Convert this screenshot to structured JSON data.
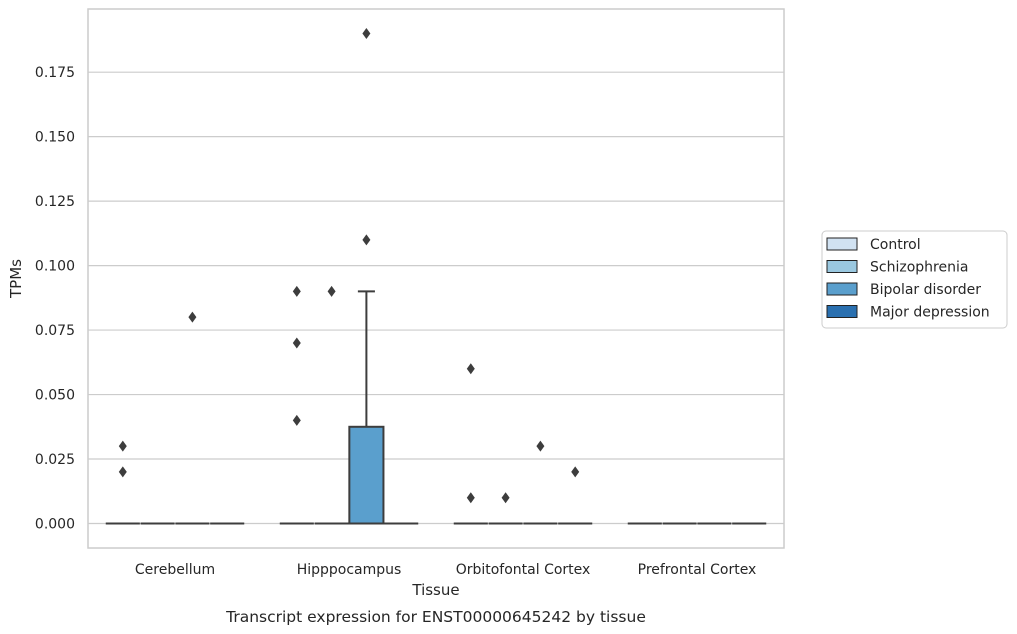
{
  "chart_data": {
    "type": "box",
    "title": "",
    "caption": "Transcript expression for ENST00000645242 by tissue",
    "xlabel": "Tissue",
    "ylabel": "TPMs",
    "categories": [
      "Cerebellum",
      "Hipppocampus",
      "Orbitofontal Cortex",
      "Prefrontal Cortex"
    ],
    "ylim": [
      -0.0095,
      0.1995
    ],
    "yticks": [
      "0.000",
      "0.025",
      "0.050",
      "0.075",
      "0.100",
      "0.125",
      "0.150",
      "0.175"
    ],
    "grid": true,
    "legend_position": "right",
    "series": [
      {
        "name": "Control",
        "color": "#d1e2f2",
        "boxes": [
          {
            "category": "Cerebellum",
            "q1": 0,
            "median": 0,
            "q3": 0,
            "whisker_low": 0,
            "whisker_high": 0,
            "outliers": [
              0.02,
              0.03
            ]
          },
          {
            "category": "Hipppocampus",
            "q1": 0,
            "median": 0,
            "q3": 0,
            "whisker_low": 0,
            "whisker_high": 0,
            "outliers": [
              0.04,
              0.07,
              0.09
            ]
          },
          {
            "category": "Orbitofontal Cortex",
            "q1": 0,
            "median": 0,
            "q3": 0,
            "whisker_low": 0,
            "whisker_high": 0,
            "outliers": [
              0.01,
              0.06
            ]
          },
          {
            "category": "Prefrontal Cortex",
            "q1": 0,
            "median": 0,
            "q3": 0,
            "whisker_low": 0,
            "whisker_high": 0,
            "outliers": []
          }
        ]
      },
      {
        "name": "Schizophrenia",
        "color": "#9ac8e0",
        "boxes": [
          {
            "category": "Cerebellum",
            "q1": 0,
            "median": 0,
            "q3": 0,
            "whisker_low": 0,
            "whisker_high": 0,
            "outliers": []
          },
          {
            "category": "Hipppocampus",
            "q1": 0,
            "median": 0,
            "q3": 0,
            "whisker_low": 0,
            "whisker_high": 0,
            "outliers": [
              0.09
            ]
          },
          {
            "category": "Orbitofontal Cortex",
            "q1": 0,
            "median": 0,
            "q3": 0,
            "whisker_low": 0,
            "whisker_high": 0,
            "outliers": [
              0.01
            ]
          },
          {
            "category": "Prefrontal Cortex",
            "q1": 0,
            "median": 0,
            "q3": 0,
            "whisker_low": 0,
            "whisker_high": 0,
            "outliers": []
          }
        ]
      },
      {
        "name": "Bipolar disorder",
        "color": "#5a9fcd",
        "boxes": [
          {
            "category": "Cerebellum",
            "q1": 0,
            "median": 0,
            "q3": 0,
            "whisker_low": 0,
            "whisker_high": 0,
            "outliers": [
              0.08
            ]
          },
          {
            "category": "Hipppocampus",
            "q1": 0,
            "median": 0,
            "q3": 0.0375,
            "whisker_low": 0,
            "whisker_high": 0.09,
            "outliers": [
              0.11,
              0.19
            ]
          },
          {
            "category": "Orbitofontal Cortex",
            "q1": 0,
            "median": 0,
            "q3": 0,
            "whisker_low": 0,
            "whisker_high": 0,
            "outliers": [
              0.03
            ]
          },
          {
            "category": "Prefrontal Cortex",
            "q1": 0,
            "median": 0,
            "q3": 0,
            "whisker_low": 0,
            "whisker_high": 0,
            "outliers": []
          }
        ]
      },
      {
        "name": "Major depression",
        "color": "#2a70b0",
        "boxes": [
          {
            "category": "Cerebellum",
            "q1": 0,
            "median": 0,
            "q3": 0,
            "whisker_low": 0,
            "whisker_high": 0,
            "outliers": []
          },
          {
            "category": "Hipppocampus",
            "q1": 0,
            "median": 0,
            "q3": 0,
            "whisker_low": 0,
            "whisker_high": 0,
            "outliers": []
          },
          {
            "category": "Orbitofontal Cortex",
            "q1": 0,
            "median": 0,
            "q3": 0,
            "whisker_low": 0,
            "whisker_high": 0,
            "outliers": [
              0.02
            ]
          },
          {
            "category": "Prefrontal Cortex",
            "q1": 0,
            "median": 0,
            "q3": 0,
            "whisker_low": 0,
            "whisker_high": 0,
            "outliers": []
          }
        ]
      }
    ]
  }
}
